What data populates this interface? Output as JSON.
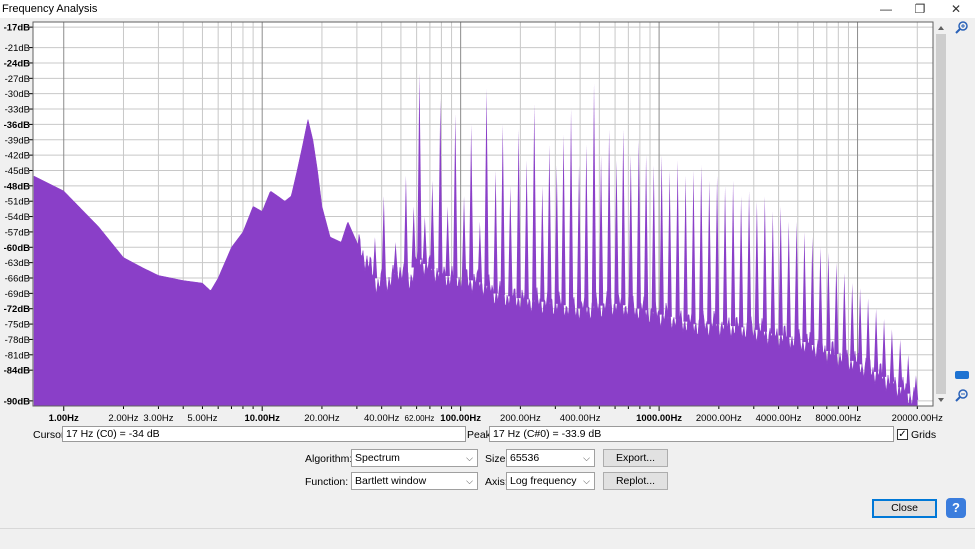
{
  "window": {
    "title": "Frequency Analysis",
    "minimize": "—",
    "restore": "❐",
    "close": "✕"
  },
  "chart_data": {
    "type": "area",
    "xscale": "log",
    "xlim": [
      0.7,
      24000
    ],
    "ylim": [
      -91,
      -16
    ],
    "color": "#8a3fc8",
    "y_ticks": [
      "-17dB",
      "-21dB",
      "-24dB",
      "-27dB",
      "-30dB",
      "-33dB",
      "-36dB",
      "-39dB",
      "-42dB",
      "-45dB",
      "-48dB",
      "-51dB",
      "-54dB",
      "-57dB",
      "-60dB",
      "-63dB",
      "-66dB",
      "-69dB",
      "-72dB",
      "-75dB",
      "-78dB",
      "-81dB",
      "-84dB",
      "-90dB"
    ],
    "y_tick_values": [
      -17,
      -21,
      -24,
      -27,
      -30,
      -33,
      -36,
      -39,
      -42,
      -45,
      -48,
      -51,
      -54,
      -57,
      -60,
      -63,
      -66,
      -69,
      -72,
      -75,
      -78,
      -81,
      -84,
      -90
    ],
    "x_ticks": [
      {
        "label": "1.00Hz",
        "value": 1,
        "bold": true
      },
      {
        "label": "2.00Hz",
        "value": 2
      },
      {
        "label": "3.00Hz",
        "value": 3
      },
      {
        "label": "5.00Hz",
        "value": 5
      },
      {
        "label": "10.00Hz",
        "value": 10,
        "bold": true
      },
      {
        "label": "20.00Hz",
        "value": 20
      },
      {
        "label": "40.00Hz",
        "value": 40
      },
      {
        "label": "62.00Hz",
        "value": 62,
        "small": true
      },
      {
        "label": "100.00Hz",
        "value": 100,
        "bold": true
      },
      {
        "label": "200.00Hz",
        "value": 200
      },
      {
        "label": "400.00Hz",
        "value": 400
      },
      {
        "label": "1000.00Hz",
        "value": 1000,
        "bold": true
      },
      {
        "label": "2000.00Hz",
        "value": 2000
      },
      {
        "label": "4000.00Hz",
        "value": 4000
      },
      {
        "label": "8000.00Hz",
        "value": 8000
      },
      {
        "label": "20000.00Hz",
        "value": 20000
      }
    ],
    "envelope": [
      [
        0.7,
        -46
      ],
      [
        1,
        -49
      ],
      [
        1.5,
        -56
      ],
      [
        2,
        -62
      ],
      [
        2.5,
        -64
      ],
      [
        3,
        -65.5
      ],
      [
        4,
        -66.5
      ],
      [
        5,
        -67
      ],
      [
        5.5,
        -68.5
      ],
      [
        6,
        -66
      ],
      [
        7,
        -60
      ],
      [
        8,
        -57
      ],
      [
        9,
        -52
      ],
      [
        10,
        -53
      ],
      [
        11,
        -49
      ],
      [
        12,
        -50
      ],
      [
        13,
        -51
      ],
      [
        14,
        -50
      ],
      [
        15,
        -45
      ],
      [
        16,
        -40
      ],
      [
        17,
        -35
      ],
      [
        18,
        -39
      ],
      [
        19,
        -45
      ],
      [
        20,
        -52
      ],
      [
        22,
        -58
      ],
      [
        25,
        -59
      ],
      [
        27,
        -55
      ],
      [
        30,
        -59
      ],
      [
        34,
        -63
      ],
      [
        38,
        -67
      ],
      [
        45,
        -66
      ],
      [
        50,
        -64
      ],
      [
        55,
        -67
      ],
      [
        60,
        -62
      ],
      [
        70,
        -64
      ],
      [
        80,
        -65
      ],
      [
        90,
        -66
      ],
      [
        100,
        -66
      ],
      [
        130,
        -67
      ],
      [
        150,
        -69
      ],
      [
        200,
        -70
      ],
      [
        300,
        -71
      ],
      [
        400,
        -72
      ],
      [
        600,
        -71
      ],
      [
        800,
        -72
      ],
      [
        1000,
        -73
      ],
      [
        1500,
        -75
      ],
      [
        2000,
        -75
      ],
      [
        3000,
        -76
      ],
      [
        5000,
        -78
      ],
      [
        8000,
        -81
      ],
      [
        12000,
        -84
      ],
      [
        16000,
        -87
      ],
      [
        20000,
        -90
      ]
    ],
    "peaks": [
      [
        37,
        -58
      ],
      [
        41,
        -50
      ],
      [
        47,
        -59
      ],
      [
        53,
        -46
      ],
      [
        58,
        -52
      ],
      [
        62,
        -26
      ],
      [
        66,
        -54
      ],
      [
        72,
        -47
      ],
      [
        79,
        -31
      ],
      [
        86,
        -52
      ],
      [
        94,
        -34
      ],
      [
        104,
        -50
      ],
      [
        113,
        -36
      ],
      [
        125,
        -55
      ],
      [
        135,
        -29
      ],
      [
        150,
        -45
      ],
      [
        163,
        -36
      ],
      [
        178,
        -48
      ],
      [
        196,
        -37
      ],
      [
        215,
        -43
      ],
      [
        235,
        -32
      ],
      [
        258,
        -48
      ],
      [
        280,
        -40
      ],
      [
        305,
        -44
      ],
      [
        330,
        -38
      ],
      [
        360,
        -33
      ],
      [
        395,
        -44
      ],
      [
        430,
        -40
      ],
      [
        470,
        -28
      ],
      [
        510,
        -42
      ],
      [
        560,
        -37
      ],
      [
        610,
        -43
      ],
      [
        660,
        -37
      ],
      [
        720,
        -42
      ],
      [
        790,
        -39
      ],
      [
        860,
        -42
      ],
      [
        940,
        -44
      ],
      [
        1030,
        -42
      ],
      [
        1130,
        -45
      ],
      [
        1240,
        -43
      ],
      [
        1360,
        -46
      ],
      [
        1490,
        -45
      ],
      [
        1630,
        -44
      ],
      [
        1790,
        -47
      ],
      [
        1960,
        -46
      ],
      [
        2150,
        -48
      ],
      [
        2360,
        -47
      ],
      [
        2590,
        -50
      ],
      [
        2840,
        -49
      ],
      [
        3110,
        -51
      ],
      [
        3410,
        -50
      ],
      [
        3740,
        -53
      ],
      [
        4100,
        -52
      ],
      [
        4500,
        -55
      ],
      [
        4930,
        -55
      ],
      [
        5400,
        -57
      ],
      [
        5920,
        -58
      ],
      [
        6500,
        -60
      ],
      [
        7130,
        -61
      ],
      [
        7820,
        -63
      ],
      [
        8580,
        -65
      ],
      [
        9400,
        -67
      ],
      [
        10300,
        -68
      ],
      [
        11300,
        -70
      ],
      [
        12400,
        -72
      ],
      [
        13600,
        -74
      ],
      [
        14900,
        -76
      ],
      [
        16400,
        -78
      ],
      [
        18000,
        -81
      ],
      [
        19700,
        -85
      ]
    ]
  },
  "controls": {
    "cursor_label": "Cursor:",
    "cursor_value": "17 Hz (C0) = -34 dB",
    "peak_label": "Peak:",
    "peak_value": "17 Hz (C#0) = -33.9 dB",
    "grids_label": "Grids",
    "grids_checked": "✓",
    "algorithm_label": "Algorithm:",
    "algorithm_value": "Spectrum",
    "size_label": "Size:",
    "size_value": "65536",
    "function_label": "Function:",
    "function_value": "Bartlett window",
    "axis_label": "Axis:",
    "axis_value": "Log frequency",
    "export_label": "Export...",
    "replot_label": "Replot...",
    "close_label": "Close",
    "help_label": "?"
  }
}
